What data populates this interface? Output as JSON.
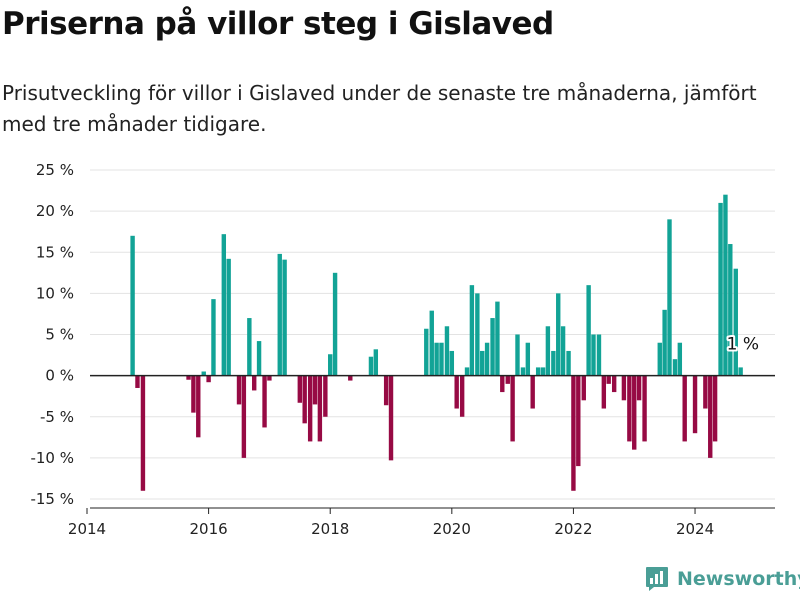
{
  "title": "Priserna på villor steg i Gislaved",
  "subtitle": "Prisutveckling för villor i Gislaved under de senaste tre månaderna, jämfört med tre månader tidigare.",
  "brand": "Newsworthy",
  "colors": {
    "positive": "#12a396",
    "negative": "#970a44",
    "grid": "#e3e3e3",
    "axis": "#222222",
    "brand": "#4a9e96"
  },
  "chart_data": {
    "type": "bar",
    "title": "Priserna på villor steg i Gislaved",
    "xlabel": "",
    "ylabel": "",
    "xlim": [
      2014,
      2025.2
    ],
    "ylim": [
      -16,
      26
    ],
    "yticks": [
      25,
      20,
      15,
      10,
      5,
      0,
      -5,
      -10,
      -15
    ],
    "ytick_labels": [
      "25 %",
      "20 %",
      "15 %",
      "10 %",
      "5 %",
      "0 %",
      "-5 %",
      "-10 %",
      "-15 %"
    ],
    "xticks": [
      2014,
      2016,
      2018,
      2020,
      2022,
      2024
    ],
    "xtick_labels": [
      "2014",
      "2016",
      "2018",
      "2020",
      "2022",
      "2024"
    ],
    "grid": true,
    "last_label": "1 %",
    "series": [
      {
        "values": [
          {
            "x": 2014.75,
            "y": 17
          },
          {
            "x": 2014.83,
            "y": -1.5
          },
          {
            "x": 2014.92,
            "y": -14
          },
          {
            "x": 2015.67,
            "y": -0.5
          },
          {
            "x": 2015.75,
            "y": -4.5
          },
          {
            "x": 2015.83,
            "y": -7.5
          },
          {
            "x": 2015.92,
            "y": 0.5
          },
          {
            "x": 2016.0,
            "y": -0.8
          },
          {
            "x": 2016.08,
            "y": 9.3
          },
          {
            "x": 2016.25,
            "y": 17.2
          },
          {
            "x": 2016.33,
            "y": 14.2
          },
          {
            "x": 2016.5,
            "y": -3.5
          },
          {
            "x": 2016.58,
            "y": -10
          },
          {
            "x": 2016.67,
            "y": 7
          },
          {
            "x": 2016.75,
            "y": -1.8
          },
          {
            "x": 2016.83,
            "y": 4.2
          },
          {
            "x": 2016.92,
            "y": -6.3
          },
          {
            "x": 2017.0,
            "y": -0.6
          },
          {
            "x": 2017.17,
            "y": 14.8
          },
          {
            "x": 2017.25,
            "y": 14.1
          },
          {
            "x": 2017.5,
            "y": -3.3
          },
          {
            "x": 2017.58,
            "y": -5.8
          },
          {
            "x": 2017.67,
            "y": -8
          },
          {
            "x": 2017.75,
            "y": -3.5
          },
          {
            "x": 2017.83,
            "y": -8
          },
          {
            "x": 2017.92,
            "y": -5
          },
          {
            "x": 2018.0,
            "y": 2.6
          },
          {
            "x": 2018.08,
            "y": 12.5
          },
          {
            "x": 2018.33,
            "y": -0.6
          },
          {
            "x": 2018.67,
            "y": 2.3
          },
          {
            "x": 2018.75,
            "y": 3.2
          },
          {
            "x": 2018.92,
            "y": -3.6
          },
          {
            "x": 2019.0,
            "y": -10.3
          },
          {
            "x": 2019.58,
            "y": 5.7
          },
          {
            "x": 2019.67,
            "y": 7.9
          },
          {
            "x": 2019.75,
            "y": 4
          },
          {
            "x": 2019.83,
            "y": 4
          },
          {
            "x": 2019.92,
            "y": 6
          },
          {
            "x": 2020.0,
            "y": 3
          },
          {
            "x": 2020.08,
            "y": -4
          },
          {
            "x": 2020.17,
            "y": -5
          },
          {
            "x": 2020.25,
            "y": 1
          },
          {
            "x": 2020.33,
            "y": 11
          },
          {
            "x": 2020.42,
            "y": 10
          },
          {
            "x": 2020.5,
            "y": 3
          },
          {
            "x": 2020.58,
            "y": 4
          },
          {
            "x": 2020.67,
            "y": 7
          },
          {
            "x": 2020.75,
            "y": 9
          },
          {
            "x": 2020.83,
            "y": -2
          },
          {
            "x": 2020.92,
            "y": -1
          },
          {
            "x": 2021.0,
            "y": -8
          },
          {
            "x": 2021.08,
            "y": 5
          },
          {
            "x": 2021.17,
            "y": 1
          },
          {
            "x": 2021.25,
            "y": 4
          },
          {
            "x": 2021.33,
            "y": -4
          },
          {
            "x": 2021.42,
            "y": 1
          },
          {
            "x": 2021.5,
            "y": 1
          },
          {
            "x": 2021.58,
            "y": 6
          },
          {
            "x": 2021.67,
            "y": 3
          },
          {
            "x": 2021.75,
            "y": 10
          },
          {
            "x": 2021.83,
            "y": 6
          },
          {
            "x": 2021.92,
            "y": 3
          },
          {
            "x": 2022.0,
            "y": -14
          },
          {
            "x": 2022.08,
            "y": -11
          },
          {
            "x": 2022.17,
            "y": -3
          },
          {
            "x": 2022.25,
            "y": 11
          },
          {
            "x": 2022.33,
            "y": 5
          },
          {
            "x": 2022.42,
            "y": 5
          },
          {
            "x": 2022.5,
            "y": -4
          },
          {
            "x": 2022.58,
            "y": -1
          },
          {
            "x": 2022.67,
            "y": -2
          },
          {
            "x": 2022.83,
            "y": -3
          },
          {
            "x": 2022.92,
            "y": -8
          },
          {
            "x": 2023.0,
            "y": -9
          },
          {
            "x": 2023.08,
            "y": -3
          },
          {
            "x": 2023.17,
            "y": -8
          },
          {
            "x": 2023.42,
            "y": 4
          },
          {
            "x": 2023.5,
            "y": 8
          },
          {
            "x": 2023.58,
            "y": 19
          },
          {
            "x": 2023.67,
            "y": 2
          },
          {
            "x": 2023.75,
            "y": 4
          },
          {
            "x": 2023.83,
            "y": -8
          },
          {
            "x": 2024.0,
            "y": -7
          },
          {
            "x": 2024.17,
            "y": -4
          },
          {
            "x": 2024.25,
            "y": -10
          },
          {
            "x": 2024.33,
            "y": -8
          },
          {
            "x": 2024.42,
            "y": 21
          },
          {
            "x": 2024.5,
            "y": 22
          },
          {
            "x": 2024.58,
            "y": 16
          },
          {
            "x": 2024.67,
            "y": 13
          },
          {
            "x": 2024.75,
            "y": 1
          }
        ]
      }
    ]
  }
}
